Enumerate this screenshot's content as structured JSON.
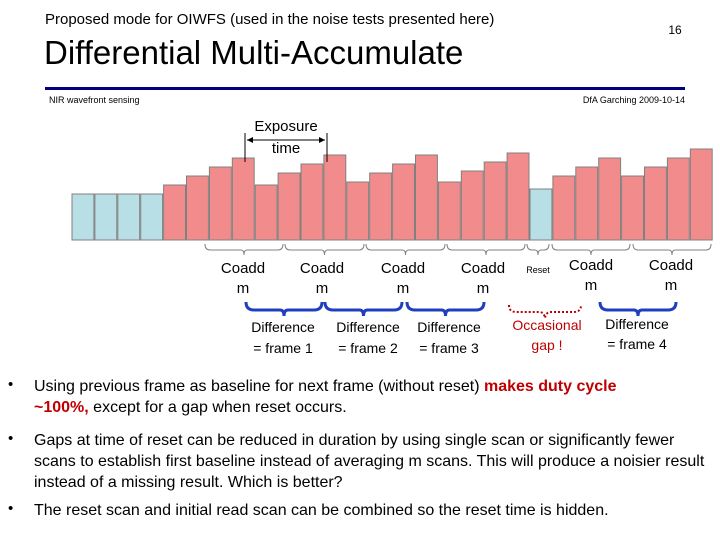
{
  "header": {
    "subtitle": "Proposed mode for OIWFS (used in the noise tests presented here)",
    "title": "Differential Multi-Accumulate",
    "page_number": "16",
    "footer_left": "NIR wavefront sensing",
    "footer_right": "DfA Garching 2009-10-14",
    "rule_color": "#000080"
  },
  "diagram": {
    "exposure_label_line1": "Exposure",
    "exposure_label_line2": "time",
    "bar_colors": {
      "baseline": "#b8dfe6",
      "coadd": "#f28c8c",
      "outline": "#808080"
    },
    "bars": [
      {
        "kind": "baseline",
        "level": 1
      },
      {
        "kind": "baseline",
        "level": 1
      },
      {
        "kind": "baseline",
        "level": 1
      },
      {
        "kind": "baseline",
        "level": 1
      },
      {
        "kind": "coadd",
        "level": 2
      },
      {
        "kind": "coadd",
        "level": 3
      },
      {
        "kind": "coadd",
        "level": 4
      },
      {
        "kind": "coadd",
        "level": 5
      },
      {
        "kind": "coadd",
        "level": 2
      },
      {
        "kind": "coadd",
        "level": 3
      },
      {
        "kind": "coadd",
        "level": 4
      },
      {
        "kind": "coadd",
        "level": 5
      },
      {
        "kind": "coadd",
        "level": 2
      },
      {
        "kind": "coadd",
        "level": 3
      },
      {
        "kind": "coadd",
        "level": 4
      },
      {
        "kind": "coadd",
        "level": 5
      },
      {
        "kind": "coadd",
        "level": 2
      },
      {
        "kind": "coadd",
        "level": 3
      },
      {
        "kind": "coadd",
        "level": 4
      },
      {
        "kind": "coadd",
        "level": 5
      },
      {
        "kind": "baseline",
        "level": 1
      },
      {
        "kind": "coadd",
        "level": 2
      },
      {
        "kind": "coadd",
        "level": 3
      },
      {
        "kind": "coadd",
        "level": 4
      },
      {
        "kind": "coadd",
        "level": 2
      },
      {
        "kind": "coadd",
        "level": 3
      },
      {
        "kind": "coadd",
        "level": 4
      },
      {
        "kind": "coadd",
        "level": 5
      }
    ],
    "coadd_label_line1": "Coadd",
    "coadd_label_line2": "m",
    "reset_label": "Reset",
    "differences": [
      {
        "line1": "Difference",
        "line2": "= frame 1"
      },
      {
        "line1": "Difference",
        "line2": "= frame 2"
      },
      {
        "line1": "Difference",
        "line2": "= frame 3"
      },
      {
        "line1": "Difference",
        "line2": "= frame 4"
      }
    ],
    "gap_line1": "Occasional",
    "gap_line2": "gap !",
    "gap_color": "#c00000",
    "brace_color": "#1f3fbf"
  },
  "bullets": [
    {
      "marker": "•",
      "part1": "Using previous frame as baseline for next frame (without reset) ",
      "emph": "makes duty cycle",
      "emph2": "~100%,",
      "part2": " except for a gap when reset occurs."
    },
    {
      "marker": "•",
      "text": "Gaps at time of reset can be reduced in duration by using single scan or significantly fewer scans to establish first baseline instead of averaging m scans.   This will produce a noisier result instead of a missing result.   Which is better?"
    },
    {
      "marker": "•",
      "text": "The reset scan and initial read scan can be combined so the reset time is hidden."
    }
  ]
}
